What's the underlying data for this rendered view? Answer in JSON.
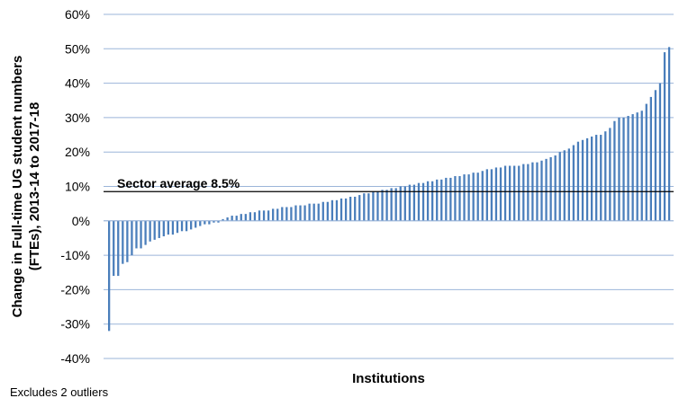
{
  "chart_data": {
    "type": "bar",
    "xlabel": "Institutions",
    "ylabel_line1": "Change in Full-time UG student numbers",
    "ylabel_line2": "(FTEs), 2013-14 to 2017-18",
    "ylim": [
      -40,
      60
    ],
    "yticks": [
      -40,
      -30,
      -20,
      -10,
      0,
      10,
      20,
      30,
      40,
      50,
      60
    ],
    "ytick_suffix": "%",
    "grid": true,
    "bar_color": "#4a7ebb",
    "grid_color": "#9bb5d9",
    "average": {
      "value": 8.5,
      "label": "Sector average 8.5%"
    },
    "values": [
      -32,
      -16,
      -16,
      -12.5,
      -12,
      -10,
      -8,
      -8,
      -7,
      -6,
      -5.5,
      -5,
      -4.5,
      -4,
      -4,
      -3.5,
      -3,
      -3,
      -2.5,
      -2,
      -1.5,
      -1,
      -1,
      -0.5,
      -0.5,
      0.5,
      1,
      1.5,
      1.5,
      2,
      2,
      2.5,
      2.5,
      3,
      3,
      3,
      3.5,
      3.5,
      4,
      4,
      4,
      4.5,
      4.5,
      4.5,
      5,
      5,
      5,
      5.5,
      5.5,
      6,
      6,
      6.5,
      6.5,
      7,
      7,
      7.5,
      8,
      8,
      8.5,
      8.5,
      9,
      9,
      9.5,
      9.5,
      10,
      10,
      10.5,
      10.5,
      11,
      11,
      11.5,
      11.5,
      12,
      12,
      12.5,
      12.5,
      13,
      13,
      13.5,
      13.5,
      14,
      14,
      14.5,
      15,
      15,
      15.5,
      15.5,
      16,
      16,
      16,
      16,
      16.5,
      16.5,
      17,
      17,
      17.5,
      18,
      18.5,
      19,
      20,
      20.5,
      21,
      22,
      23,
      23.5,
      24,
      24.5,
      25,
      25,
      26,
      27,
      29,
      30,
      30,
      30.5,
      31,
      31.5,
      32,
      34,
      36,
      38,
      40,
      49,
      50.5
    ],
    "footnote": "Excludes 2 outliers"
  }
}
